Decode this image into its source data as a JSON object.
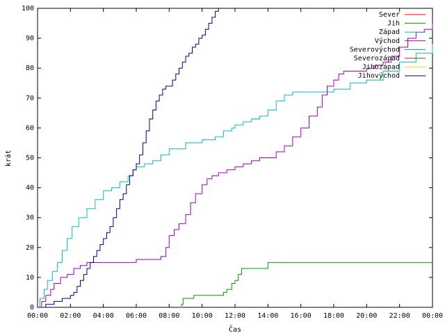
{
  "chart_data": {
    "type": "line",
    "xlabel": "Čas",
    "ylabel": "krát",
    "xlim": [
      0,
      24
    ],
    "ylim": [
      0,
      100
    ],
    "x_ticks": [
      {
        "value": 0,
        "label": "00:00"
      },
      {
        "value": 2,
        "label": "02:00"
      },
      {
        "value": 4,
        "label": "04:00"
      },
      {
        "value": 6,
        "label": "06:00"
      },
      {
        "value": 8,
        "label": "08:00"
      },
      {
        "value": 10,
        "label": "10:00"
      },
      {
        "value": 12,
        "label": "12:00"
      },
      {
        "value": 14,
        "label": "14:00"
      },
      {
        "value": 16,
        "label": "16:00"
      },
      {
        "value": 18,
        "label": "18:00"
      },
      {
        "value": 20,
        "label": "20:00"
      },
      {
        "value": 22,
        "label": "22:00"
      },
      {
        "value": 24,
        "label": "00:00"
      }
    ],
    "y_ticks": [
      0,
      10,
      20,
      30,
      40,
      50,
      60,
      70,
      80,
      90,
      100
    ],
    "grid": false,
    "legend_position": "top-right",
    "series": [
      {
        "name": "Sever",
        "color": "#ff0000",
        "x": [],
        "y": []
      },
      {
        "name": "Jih",
        "color": "#00a000",
        "x": [
          8.7,
          8.75,
          8.85,
          9.5,
          10.0,
          10.9,
          11.3,
          11.5,
          11.8,
          12.0,
          12.2,
          12.4,
          14.0,
          24.0
        ],
        "y": [
          0,
          1,
          3,
          4,
          4,
          4,
          5,
          6,
          8,
          9,
          11,
          13,
          15,
          15
        ]
      },
      {
        "name": "Západ",
        "color": "#00c0c0",
        "x": [
          0,
          0.15,
          0.4,
          0.6,
          0.9,
          1.2,
          1.5,
          1.8,
          2.1,
          2.5,
          3.0,
          3.5,
          4.0,
          4.5,
          5.0,
          5.5,
          5.8,
          6.0,
          6.5,
          7.0,
          7.5,
          8.0,
          9.0,
          10.0,
          10.8,
          11.3,
          11.8,
          12.0,
          12.5,
          13.0,
          13.5,
          14.0,
          14.5,
          15.0,
          15.5,
          16.0,
          17.0,
          18.0,
          19.0,
          20.0,
          21.0,
          22.0,
          23.0,
          24.0
        ],
        "y": [
          0,
          3,
          6,
          9,
          12,
          15,
          19,
          23,
          27,
          30,
          33,
          36,
          39,
          40,
          42,
          44,
          46,
          47,
          48,
          49,
          51,
          53,
          55,
          56,
          57,
          59,
          60,
          61,
          62,
          63,
          64,
          66,
          69,
          71,
          72,
          72,
          72,
          73,
          75,
          76,
          79,
          82,
          85,
          88
        ]
      },
      {
        "name": "Východ",
        "color": "#a000c0",
        "x": [
          0,
          0.25,
          0.5,
          0.8,
          1.0,
          1.4,
          1.8,
          2.2,
          2.6,
          3.0,
          4.0,
          5.0,
          6.0,
          7.0,
          7.5,
          7.8,
          8.0,
          8.3,
          8.6,
          9.0,
          9.3,
          9.6,
          10.0,
          10.3,
          10.6,
          11.0,
          11.5,
          12.0,
          12.5,
          13.0,
          13.5,
          14.0,
          14.5,
          15.0,
          15.5,
          16.0,
          16.5,
          17.0,
          17.3,
          17.6,
          18.0,
          18.3,
          18.6,
          19.0,
          19.5,
          20.0,
          20.5,
          21.0,
          21.5,
          22.0,
          22.5,
          23.0,
          23.5,
          24.0
        ],
        "y": [
          0,
          2,
          4,
          6,
          8,
          10,
          11,
          13,
          14,
          15,
          15,
          15,
          16,
          16,
          17,
          20,
          24,
          26,
          28,
          31,
          35,
          38,
          41,
          43,
          44,
          45,
          46,
          47,
          48,
          49,
          50,
          50,
          52,
          54,
          57,
          60,
          64,
          67,
          71,
          74,
          76,
          78,
          79,
          79,
          79,
          80,
          81,
          82,
          84,
          87,
          90,
          92,
          93,
          95
        ]
      },
      {
        "name": "Severovýchod",
        "color": "#00a060",
        "x": [],
        "y": []
      },
      {
        "name": "Severozápad",
        "color": "#804000",
        "x": [],
        "y": []
      },
      {
        "name": "Jihozápad",
        "color": "#ffd000",
        "x": [],
        "y": []
      },
      {
        "name": "Jihovýchod",
        "color": "#000080",
        "x": [
          0,
          0.5,
          1.0,
          1.5,
          2.0,
          2.2,
          2.4,
          2.6,
          2.8,
          3.0,
          3.2,
          3.4,
          3.6,
          3.8,
          4.0,
          4.2,
          4.4,
          4.6,
          4.8,
          5.0,
          5.2,
          5.4,
          5.6,
          5.8,
          6.0,
          6.2,
          6.4,
          6.6,
          6.8,
          7.0,
          7.2,
          7.4,
          7.6,
          7.8,
          8.0,
          8.2,
          8.4,
          8.6,
          8.8,
          9.0,
          9.2,
          9.4,
          9.6,
          9.8,
          10.0,
          10.2,
          10.4,
          10.6,
          10.8,
          11.0
        ],
        "y": [
          0,
          1,
          2,
          3,
          4,
          5,
          7,
          9,
          11,
          13,
          15,
          17,
          19,
          21,
          23,
          25,
          27,
          30,
          33,
          36,
          38,
          41,
          44,
          46,
          48,
          51,
          55,
          59,
          63,
          66,
          69,
          71,
          73,
          74,
          74,
          76,
          78,
          80,
          82,
          84,
          85,
          87,
          88,
          90,
          91,
          93,
          95,
          97,
          99,
          100
        ]
      }
    ]
  }
}
